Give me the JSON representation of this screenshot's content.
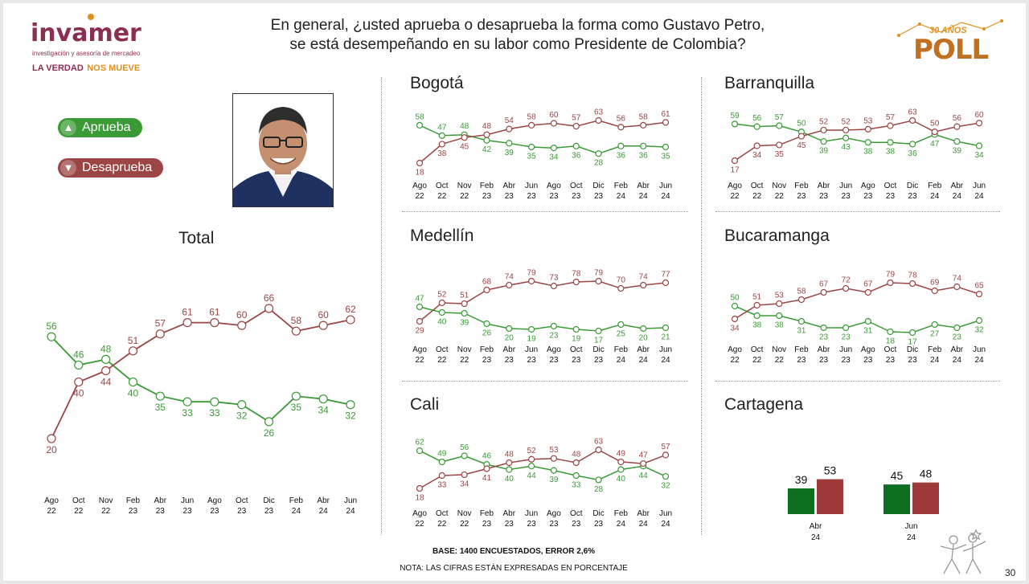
{
  "header": {
    "logo_name": "invamer",
    "logo_subtitle": "investigación y asesoría de mercadeo",
    "tagline_part1": "LA VERDAD",
    "tagline_part2": "NOS MUEVE",
    "question_line1": "En general, ¿usted aprueba o desaprueba la forma como Gustavo Petro,",
    "question_line2": "se está desempeñando en su labor como Presidente de Colombia?",
    "poll_badge_years": "30 AÑOS",
    "poll_badge_word": "POLL"
  },
  "legend": {
    "approve": "Aprueba",
    "disapprove": "Desaprueba"
  },
  "colors": {
    "approve": "#3a9a35",
    "disapprove": "#9b4545",
    "approve_bar": "#0f6f20",
    "disapprove_bar": "#9e3a3a"
  },
  "footer": {
    "base": "BASE: 1400 ENCUESTADOS, ERROR 2,6%",
    "note": "NOTA: LAS CIFRAS ESTÁN EXPRESADAS EN PORCENTAJE",
    "page_number": "30"
  },
  "chart_data": [
    {
      "id": "total",
      "type": "line",
      "title": "Total",
      "categories": [
        [
          "Ago",
          "22"
        ],
        [
          "Oct",
          "22"
        ],
        [
          "Nov",
          "22"
        ],
        [
          "Feb",
          "23"
        ],
        [
          "Abr",
          "23"
        ],
        [
          "Jun",
          "23"
        ],
        [
          "Ago",
          "23"
        ],
        [
          "Oct",
          "23"
        ],
        [
          "Dic",
          "23"
        ],
        [
          "Feb",
          "24"
        ],
        [
          "Abr",
          "24"
        ],
        [
          "Jun",
          "24"
        ]
      ],
      "series": [
        {
          "name": "Aprueba",
          "values": [
            56,
            46,
            48,
            40,
            35,
            33,
            33,
            32,
            26,
            35,
            34,
            32
          ]
        },
        {
          "name": "Desaprueba",
          "values": [
            20,
            40,
            44,
            51,
            57,
            61,
            61,
            60,
            66,
            58,
            60,
            62
          ]
        }
      ]
    },
    {
      "id": "bogota",
      "type": "line",
      "title": "Bogotá",
      "categories": [
        [
          "Ago",
          "22"
        ],
        [
          "Oct",
          "22"
        ],
        [
          "Nov",
          "22"
        ],
        [
          "Feb",
          "23"
        ],
        [
          "Abr",
          "23"
        ],
        [
          "Jun",
          "23"
        ],
        [
          "Ago",
          "23"
        ],
        [
          "Oct",
          "23"
        ],
        [
          "Dic",
          "23"
        ],
        [
          "Feb",
          "24"
        ],
        [
          "Abr",
          "24"
        ],
        [
          "Jun",
          "24"
        ]
      ],
      "series": [
        {
          "name": "Aprueba",
          "values": [
            58,
            47,
            48,
            42,
            39,
            35,
            34,
            36,
            28,
            36,
            36,
            35
          ]
        },
        {
          "name": "Desaprueba",
          "values": [
            18,
            38,
            45,
            48,
            54,
            58,
            60,
            57,
            63,
            56,
            58,
            61
          ]
        }
      ]
    },
    {
      "id": "barranquilla",
      "type": "line",
      "title": "Barranquilla",
      "categories": [
        [
          "Ago",
          "22"
        ],
        [
          "Oct",
          "22"
        ],
        [
          "Nov",
          "22"
        ],
        [
          "Feb",
          "23"
        ],
        [
          "Abr",
          "23"
        ],
        [
          "Jun",
          "23"
        ],
        [
          "Ago",
          "23"
        ],
        [
          "Oct",
          "23"
        ],
        [
          "Dic",
          "23"
        ],
        [
          "Feb",
          "24"
        ],
        [
          "Abr",
          "24"
        ],
        [
          "Jun",
          "24"
        ]
      ],
      "series": [
        {
          "name": "Aprueba",
          "values": [
            59,
            56,
            57,
            50,
            39,
            43,
            38,
            38,
            36,
            47,
            39,
            34
          ]
        },
        {
          "name": "Desaprueba",
          "values": [
            17,
            34,
            35,
            45,
            52,
            52,
            53,
            57,
            63,
            50,
            56,
            60
          ]
        }
      ]
    },
    {
      "id": "medellin",
      "type": "line",
      "title": "Medellín",
      "categories": [
        [
          "Ago",
          "22"
        ],
        [
          "Oct",
          "22"
        ],
        [
          "Nov",
          "22"
        ],
        [
          "Feb",
          "23"
        ],
        [
          "Abr",
          "23"
        ],
        [
          "Jun",
          "23"
        ],
        [
          "Ago",
          "23"
        ],
        [
          "Oct",
          "23"
        ],
        [
          "Dic",
          "23"
        ],
        [
          "Feb",
          "24"
        ],
        [
          "Abr",
          "24"
        ],
        [
          "Jun",
          "24"
        ]
      ],
      "series": [
        {
          "name": "Aprueba",
          "values": [
            47,
            40,
            39,
            26,
            20,
            19,
            23,
            19,
            17,
            25,
            20,
            21
          ]
        },
        {
          "name": "Desaprueba",
          "values": [
            29,
            52,
            51,
            68,
            74,
            79,
            73,
            78,
            79,
            70,
            74,
            77
          ]
        }
      ]
    },
    {
      "id": "bucaramanga",
      "type": "line",
      "title": "Bucaramanga",
      "categories": [
        [
          "Ago",
          "22"
        ],
        [
          "Oct",
          "22"
        ],
        [
          "Nov",
          "22"
        ],
        [
          "Feb",
          "23"
        ],
        [
          "Abr",
          "23"
        ],
        [
          "Jun",
          "23"
        ],
        [
          "Ago",
          "23"
        ],
        [
          "Oct",
          "23"
        ],
        [
          "Dic",
          "23"
        ],
        [
          "Feb",
          "24"
        ],
        [
          "Abr",
          "24"
        ],
        [
          "Jun",
          "24"
        ]
      ],
      "series": [
        {
          "name": "Aprueba",
          "values": [
            50,
            38,
            38,
            31,
            23,
            23,
            31,
            18,
            17,
            27,
            23,
            32
          ]
        },
        {
          "name": "Desaprueba",
          "values": [
            34,
            51,
            53,
            58,
            67,
            72,
            67,
            79,
            78,
            69,
            74,
            65
          ]
        }
      ]
    },
    {
      "id": "cali",
      "type": "line",
      "title": "Cali",
      "categories": [
        [
          "Ago",
          "22"
        ],
        [
          "Oct",
          "22"
        ],
        [
          "Nov",
          "22"
        ],
        [
          "Feb",
          "23"
        ],
        [
          "Abr",
          "23"
        ],
        [
          "Jun",
          "23"
        ],
        [
          "Ago",
          "23"
        ],
        [
          "Oct",
          "23"
        ],
        [
          "Dic",
          "23"
        ],
        [
          "Feb",
          "24"
        ],
        [
          "Abr",
          "24"
        ],
        [
          "Jun",
          "24"
        ]
      ],
      "series": [
        {
          "name": "Aprueba",
          "values": [
            62,
            49,
            56,
            46,
            40,
            44,
            39,
            33,
            28,
            40,
            44,
            32
          ]
        },
        {
          "name": "Desaprueba",
          "values": [
            18,
            33,
            34,
            41,
            48,
            52,
            53,
            48,
            63,
            49,
            47,
            57
          ]
        }
      ]
    },
    {
      "id": "cartagena",
      "type": "bar",
      "title": "Cartagena",
      "categories": [
        [
          "Abr",
          "24"
        ],
        [
          "Jun",
          "24"
        ]
      ],
      "series": [
        {
          "name": "Aprueba",
          "values": [
            39,
            45
          ]
        },
        {
          "name": "Desaprueba",
          "values": [
            53,
            48
          ]
        }
      ]
    }
  ]
}
